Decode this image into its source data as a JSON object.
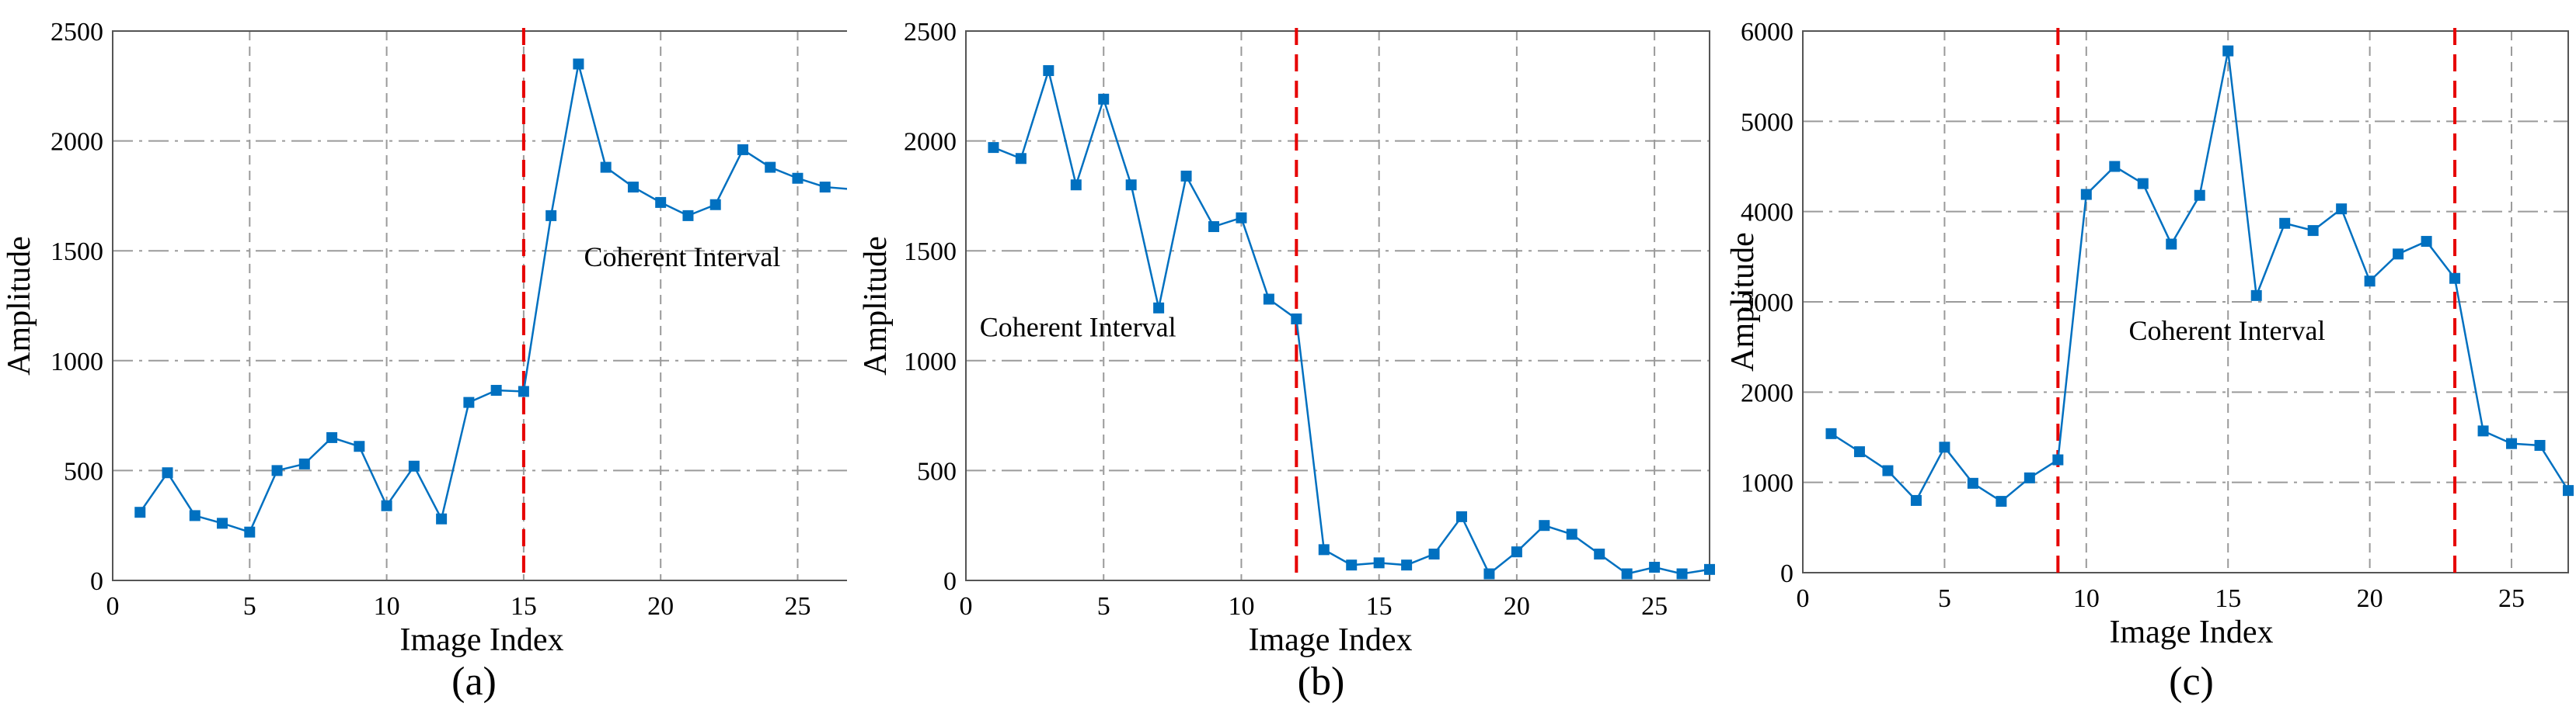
{
  "chart_data": [
    {
      "type": "line",
      "caption": "(a)",
      "xlabel": "Image Index",
      "ylabel": "Amplitude",
      "xlim": [
        0,
        27
      ],
      "ylim": [
        0,
        2500
      ],
      "xticks": [
        0,
        5,
        10,
        15,
        20,
        25
      ],
      "yticks": [
        0,
        500,
        1000,
        1500,
        2000,
        2500
      ],
      "grid": true,
      "x": [
        1,
        2,
        3,
        4,
        5,
        6,
        7,
        8,
        9,
        10,
        11,
        12,
        13,
        14,
        15,
        16,
        17,
        18,
        19,
        20,
        21,
        22,
        23,
        24,
        25,
        26,
        27
      ],
      "series": [
        {
          "values": [
            310,
            490,
            295,
            260,
            220,
            500,
            530,
            650,
            610,
            340,
            520,
            280,
            810,
            865,
            860,
            1660,
            2350,
            1880,
            1790,
            1720,
            1660,
            1710,
            1960,
            1880,
            1830,
            1790,
            1780
          ]
        }
      ],
      "vlines": [
        15
      ],
      "annotation": "Coherent Interval",
      "annotation_pos": [
        17.2,
        1430
      ],
      "color": "#0070c0",
      "vline_color": "#e60000"
    },
    {
      "type": "line",
      "caption": "(b)",
      "xlabel": "Image Index",
      "ylabel": "Amplitude",
      "xlim": [
        0,
        27
      ],
      "ylim": [
        0,
        2500
      ],
      "xticks": [
        0,
        5,
        10,
        15,
        20,
        25
      ],
      "yticks": [
        0,
        500,
        1000,
        1500,
        2000,
        2500
      ],
      "grid": true,
      "x": [
        1,
        2,
        3,
        4,
        5,
        6,
        7,
        8,
        9,
        10,
        11,
        12,
        13,
        14,
        15,
        16,
        17,
        18,
        19,
        20,
        21,
        22,
        23,
        24,
        25,
        26,
        27
      ],
      "series": [
        {
          "values": [
            1970,
            1920,
            2320,
            1800,
            2190,
            1800,
            1240,
            1840,
            1610,
            1650,
            1280,
            1190,
            140,
            70,
            80,
            70,
            120,
            290,
            30,
            130,
            250,
            210,
            120,
            30,
            60,
            30,
            50
          ]
        }
      ],
      "vlines": [
        12
      ],
      "annotation": "Coherent Interval",
      "annotation_pos": [
        0.5,
        1110
      ],
      "color": "#0070c0",
      "vline_color": "#e60000"
    },
    {
      "type": "line",
      "caption": "(c)",
      "xlabel": "Image Index",
      "ylabel": "Amplitude",
      "xlim": [
        0,
        27
      ],
      "ylim": [
        0,
        6000
      ],
      "xticks": [
        0,
        5,
        10,
        15,
        20,
        25
      ],
      "yticks": [
        0,
        1000,
        2000,
        3000,
        4000,
        5000,
        6000
      ],
      "grid": true,
      "x": [
        1,
        2,
        3,
        4,
        5,
        6,
        7,
        8,
        9,
        10,
        11,
        12,
        13,
        14,
        15,
        16,
        17,
        18,
        19,
        20,
        21,
        22,
        23,
        24,
        25,
        26,
        27
      ],
      "series": [
        {
          "values": [
            1540,
            1340,
            1130,
            800,
            1390,
            990,
            790,
            1050,
            1250,
            4190,
            4500,
            4310,
            3640,
            4180,
            5780,
            3070,
            3870,
            3790,
            4030,
            3230,
            3530,
            3670,
            3260,
            1570,
            1430,
            1410,
            910
          ]
        }
      ],
      "vlines": [
        9,
        23
      ],
      "annotation": "Coherent Interval",
      "annotation_pos": [
        11.5,
        2580
      ],
      "color": "#0070c0",
      "vline_color": "#e60000"
    }
  ]
}
